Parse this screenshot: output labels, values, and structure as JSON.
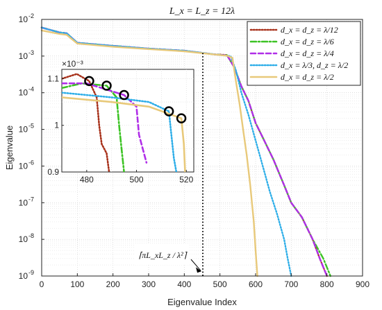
{
  "chart_data": {
    "type": "line",
    "title": "L_x = L_z = 12λ",
    "xlabel": "Eigenvalue Index",
    "ylabel": "Eigenvalue",
    "xlim": [
      0,
      900
    ],
    "ylim": [
      1e-09,
      0.01
    ],
    "yscale": "log",
    "grid": true,
    "legend_position": "top-right",
    "x_ticks": [
      "0",
      "100",
      "200",
      "300",
      "400",
      "500",
      "600",
      "700",
      "800",
      "900"
    ],
    "y_tick_bases": [
      "10",
      "10",
      "10",
      "10",
      "10",
      "10",
      "10",
      "10"
    ],
    "y_tick_exps": [
      "-9",
      "-8",
      "-7",
      "-6",
      "-5",
      "-4",
      "-3",
      "-2"
    ],
    "series": [
      {
        "name": "d_x = d_z = λ/12",
        "color": "#a8321c",
        "dash": "dotted",
        "points": [
          [
            0,
            0.006
          ],
          [
            50,
            0.0044
          ],
          [
            70,
            0.0042
          ],
          [
            100,
            0.0023
          ],
          [
            200,
            0.0019
          ],
          [
            300,
            0.0016
          ],
          [
            400,
            0.0014
          ],
          [
            480,
            0.00112
          ],
          [
            500,
            0.0011
          ],
          [
            520,
            0.00107
          ],
          [
            540,
            0.0005
          ],
          [
            560,
            0.00015
          ],
          [
            580,
            6e-05
          ],
          [
            600,
            1.5e-05
          ],
          [
            620,
            6e-06
          ],
          [
            650,
            1.5e-06
          ],
          [
            680,
            3e-07
          ],
          [
            700,
            1e-07
          ],
          [
            730,
            4e-08
          ],
          [
            760,
            1e-08
          ],
          [
            780,
            3e-09
          ],
          [
            800,
            1e-09
          ]
        ]
      },
      {
        "name": "d_x = d_z = λ/6",
        "color": "#3cc324",
        "dash": "dashdot",
        "points": [
          [
            0,
            0.006
          ],
          [
            50,
            0.0044
          ],
          [
            70,
            0.0042
          ],
          [
            100,
            0.0023
          ],
          [
            200,
            0.0019
          ],
          [
            300,
            0.0016
          ],
          [
            400,
            0.0014
          ],
          [
            488,
            0.0011
          ],
          [
            500,
            0.00108
          ],
          [
            520,
            0.00105
          ],
          [
            540,
            0.0005
          ],
          [
            560,
            0.00015
          ],
          [
            580,
            6e-05
          ],
          [
            600,
            1.5e-05
          ],
          [
            620,
            6e-06
          ],
          [
            650,
            1.5e-06
          ],
          [
            680,
            3e-07
          ],
          [
            700,
            1e-07
          ],
          [
            730,
            4e-08
          ],
          [
            760,
            1e-08
          ],
          [
            790,
            3e-09
          ],
          [
            810,
            1e-09
          ]
        ]
      },
      {
        "name": "d_x = d_z = λ/4",
        "color": "#b02ee8",
        "dash": "dashed",
        "points": [
          [
            0,
            0.006
          ],
          [
            50,
            0.0044
          ],
          [
            70,
            0.0042
          ],
          [
            100,
            0.0023
          ],
          [
            200,
            0.0019
          ],
          [
            300,
            0.0016
          ],
          [
            400,
            0.0014
          ],
          [
            495,
            0.00108
          ],
          [
            520,
            0.00105
          ],
          [
            540,
            0.0005
          ],
          [
            560,
            0.00015
          ],
          [
            580,
            6e-05
          ],
          [
            600,
            1.5e-05
          ],
          [
            620,
            6e-06
          ],
          [
            650,
            1.5e-06
          ],
          [
            680,
            3e-07
          ],
          [
            700,
            1e-07
          ],
          [
            730,
            4e-08
          ],
          [
            760,
            1e-08
          ],
          [
            780,
            3e-09
          ],
          [
            800,
            1e-09
          ]
        ]
      },
      {
        "name": "d_x = λ/3, d_z = λ/2",
        "color": "#2eaee8",
        "dash": "dotted",
        "points": [
          [
            0,
            0.006
          ],
          [
            50,
            0.0044
          ],
          [
            70,
            0.0042
          ],
          [
            100,
            0.0023
          ],
          [
            200,
            0.0019
          ],
          [
            300,
            0.0016
          ],
          [
            400,
            0.0014
          ],
          [
            515,
            0.00103
          ],
          [
            530,
            0.001
          ],
          [
            545,
            0.0004
          ],
          [
            560,
            0.0001
          ],
          [
            580,
            2.5e-05
          ],
          [
            600,
            5e-06
          ],
          [
            620,
            1e-06
          ],
          [
            640,
            2e-07
          ],
          [
            660,
            5e-08
          ],
          [
            680,
            1e-08
          ],
          [
            690,
            3e-09
          ],
          [
            700,
            1e-09
          ]
        ]
      },
      {
        "name": "d_x = d_z = λ/2",
        "color": "#e8c97a",
        "dash": "solid",
        "points": [
          [
            0,
            0.005
          ],
          [
            50,
            0.004
          ],
          [
            70,
            0.0038
          ],
          [
            100,
            0.0022
          ],
          [
            200,
            0.0018
          ],
          [
            300,
            0.00155
          ],
          [
            400,
            0.00135
          ],
          [
            450,
            0.0012
          ],
          [
            520,
            0.00102
          ],
          [
            535,
            0.0009
          ],
          [
            545,
            0.0002
          ],
          [
            555,
            5e-05
          ],
          [
            565,
            1e-05
          ],
          [
            575,
            2e-06
          ],
          [
            585,
            3e-07
          ],
          [
            595,
            3e-08
          ],
          [
            600,
            5e-09
          ],
          [
            605,
            1e-09
          ]
        ]
      }
    ],
    "annotations": [
      {
        "type": "vertical-line",
        "x": 452,
        "style": "dotted",
        "color": "#000000"
      },
      {
        "type": "label",
        "text": "⌈πL_xL_z / λ²⌉",
        "arrow_to_x": 452,
        "arrow_to_y": 1e-09
      }
    ],
    "inset": {
      "xlim": [
        470,
        523
      ],
      "ylim": [
        0.0009,
        0.00112
      ],
      "scale_label": "×10⁻³",
      "x_ticks": [
        "480",
        "500",
        "520"
      ],
      "y_ticks": [
        "0.9",
        "1",
        "1.1"
      ],
      "markers": [
        {
          "x": 481,
          "y": 0.001095
        },
        {
          "x": 488,
          "y": 0.001085
        },
        {
          "x": 495,
          "y": 0.001065
        },
        {
          "x": 513,
          "y": 0.00103
        },
        {
          "x": 518,
          "y": 0.001015
        }
      ],
      "series": [
        {
          "color": "#a8321c",
          "dash": "dotted",
          "points": [
            [
              470,
              0.0011
            ],
            [
              476,
              0.00111
            ],
            [
              481,
              0.001095
            ],
            [
              484,
              0.00106
            ],
            [
              485,
              0.001
            ],
            [
              486,
              0.00096
            ],
            [
              488,
              0.00094
            ],
            [
              489,
              0.0009
            ]
          ]
        },
        {
          "color": "#3cc324",
          "dash": "dashdot",
          "points": [
            [
              470,
              0.00108
            ],
            [
              478,
              0.00109
            ],
            [
              488,
              0.001085
            ],
            [
              492,
              0.00106
            ],
            [
              493,
              0.001
            ],
            [
              494,
              0.00095
            ],
            [
              495,
              0.0009
            ]
          ]
        },
        {
          "color": "#b02ee8",
          "dash": "dashed",
          "points": [
            [
              470,
              0.00109
            ],
            [
              480,
              0.00109
            ],
            [
              495,
              0.001065
            ],
            [
              500,
              0.00104
            ],
            [
              501,
              0.00098
            ],
            [
              503,
              0.00094
            ],
            [
              504,
              0.00092
            ]
          ]
        },
        {
          "color": "#2eaee8",
          "dash": "dotted",
          "points": [
            [
              470,
              0.00107
            ],
            [
              490,
              0.00106
            ],
            [
              505,
              0.00105
            ],
            [
              513,
              0.00103
            ],
            [
              514,
              0.00098
            ],
            [
              515,
              0.00093
            ],
            [
              516,
              0.0009
            ]
          ]
        },
        {
          "color": "#e8c97a",
          "dash": "solid",
          "points": [
            [
              470,
              0.00106
            ],
            [
              490,
              0.00105
            ],
            [
              505,
              0.00104
            ],
            [
              518,
              0.001015
            ],
            [
              519,
              0.00096
            ],
            [
              519.5,
              0.0009
            ]
          ]
        }
      ]
    }
  }
}
